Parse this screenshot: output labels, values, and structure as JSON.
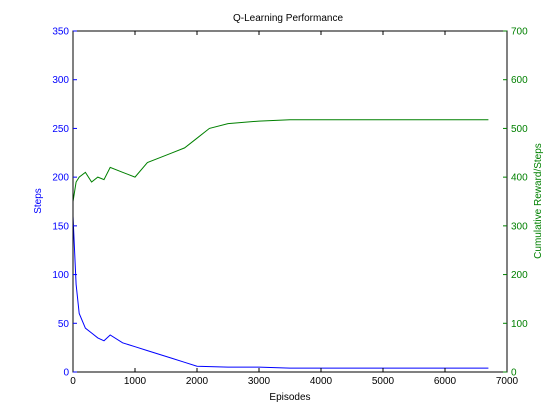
{
  "chart_data": {
    "type": "line",
    "title": "Q-Learning Performance",
    "xlabel": "Episodes",
    "ylabel_left": "Steps",
    "ylabel_right": "Cumulative Reward/Steps",
    "xlim": [
      0,
      7000
    ],
    "ylim_left": [
      0,
      350
    ],
    "ylim_right": [
      0,
      700
    ],
    "x_ticks": [
      0,
      1000,
      2000,
      3000,
      4000,
      5000,
      6000,
      7000
    ],
    "y_ticks_left": [
      0,
      50,
      100,
      150,
      200,
      250,
      300,
      350
    ],
    "y_ticks_right": [
      0,
      100,
      200,
      300,
      400,
      500,
      600,
      700
    ],
    "grid": false,
    "colors": {
      "left_axis": "#0000ff",
      "right_axis": "#008000"
    },
    "series": [
      {
        "axis": "left",
        "color": "#0000ff",
        "x": [
          0,
          50,
          100,
          200,
          300,
          400,
          500,
          600,
          800,
          1000,
          1200,
          1400,
          1600,
          1800,
          2000,
          2500,
          3000,
          3500,
          4000,
          5000,
          6000,
          6700
        ],
        "y": [
          160,
          90,
          60,
          45,
          40,
          35,
          32,
          38,
          30,
          26,
          22,
          18,
          14,
          10,
          6,
          5,
          5,
          4,
          4,
          4,
          4,
          4
        ]
      },
      {
        "axis": "right",
        "color": "#008000",
        "x": [
          0,
          50,
          100,
          200,
          300,
          400,
          500,
          600,
          800,
          1000,
          1200,
          1400,
          1600,
          1800,
          2000,
          2200,
          2500,
          3000,
          3500,
          4000,
          5000,
          6000,
          6700
        ],
        "y": [
          350,
          390,
          400,
          410,
          390,
          400,
          395,
          420,
          410,
          400,
          430,
          440,
          450,
          460,
          480,
          500,
          510,
          515,
          518,
          518,
          518,
          518,
          518
        ]
      }
    ]
  }
}
